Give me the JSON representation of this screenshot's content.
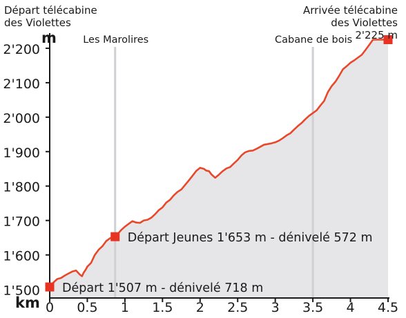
{
  "chart_data": {
    "type": "area",
    "title": "",
    "xlabel": "km",
    "ylabel": "m",
    "xlim": [
      0,
      4.5
    ],
    "ylim": [
      1475,
      2240
    ],
    "x_ticks": [
      0,
      0.5,
      1,
      1.5,
      2,
      2.5,
      3,
      3.5,
      4,
      4.5
    ],
    "x_tick_labels": [
      "0",
      "0.5",
      "1",
      "1.5",
      "2",
      "2.5",
      "3",
      "3.5",
      "4",
      "4.5"
    ],
    "y_ticks": [
      1500,
      1600,
      1700,
      1800,
      1900,
      2000,
      2100,
      2200
    ],
    "y_tick_labels": [
      "1'500",
      "1'600",
      "1'700",
      "1'800",
      "1'900",
      "2'000",
      "2'100",
      "2'200"
    ],
    "grid": false,
    "colors": {
      "line": "#e8472a",
      "fill": "#e6e6e8",
      "marker": "#e63323",
      "axis": "#1a1a1a",
      "guide": "#cfd0d4"
    },
    "series": [
      {
        "x": [
          0,
          0.02,
          0.05,
          0.1,
          0.15,
          0.2,
          0.25,
          0.3,
          0.35,
          0.4,
          0.43,
          0.45,
          0.48,
          0.5,
          0.55,
          0.6,
          0.65,
          0.7,
          0.75,
          0.8,
          0.85,
          0.9,
          0.95,
          1.0,
          1.05,
          1.1,
          1.15,
          1.2,
          1.25,
          1.3,
          1.35,
          1.4,
          1.45,
          1.5,
          1.55,
          1.6,
          1.65,
          1.7,
          1.75,
          1.8,
          1.85,
          1.9,
          1.95,
          2.0,
          2.05,
          2.08,
          2.12,
          2.15,
          2.2,
          2.25,
          2.3,
          2.35,
          2.4,
          2.45,
          2.5,
          2.55,
          2.6,
          2.65,
          2.7,
          2.75,
          2.8,
          2.85,
          2.9,
          2.95,
          3.0,
          3.05,
          3.1,
          3.15,
          3.2,
          3.25,
          3.3,
          3.35,
          3.4,
          3.45,
          3.5,
          3.55,
          3.6,
          3.65,
          3.7,
          3.75,
          3.8,
          3.85,
          3.9,
          3.95,
          4.0,
          4.05,
          4.1,
          4.15,
          4.2,
          4.25,
          4.3,
          4.35,
          4.4,
          4.43,
          4.46,
          4.48,
          4.5
        ],
        "y": [
          1507,
          1512,
          1520,
          1530,
          1533,
          1540,
          1546,
          1552,
          1555,
          1543,
          1538,
          1548,
          1558,
          1566,
          1577,
          1600,
          1615,
          1625,
          1640,
          1648,
          1653,
          1660,
          1672,
          1682,
          1690,
          1698,
          1694,
          1693,
          1700,
          1702,
          1708,
          1718,
          1730,
          1738,
          1752,
          1760,
          1773,
          1783,
          1790,
          1803,
          1816,
          1830,
          1844,
          1853,
          1850,
          1845,
          1843,
          1834,
          1824,
          1833,
          1843,
          1851,
          1855,
          1866,
          1876,
          1889,
          1898,
          1902,
          1903,
          1908,
          1914,
          1920,
          1922,
          1924,
          1927,
          1932,
          1939,
          1947,
          1953,
          1964,
          1974,
          1983,
          1994,
          2004,
          2012,
          2020,
          2034,
          2047,
          2073,
          2090,
          2103,
          2120,
          2139,
          2148,
          2158,
          2165,
          2173,
          2181,
          2195,
          2210,
          2225,
          2225,
          2225,
          2225,
          2225,
          2225,
          2225
        ]
      }
    ],
    "guides": [
      {
        "x": 0.87,
        "label": "Les Marolires"
      },
      {
        "x": 3.5,
        "label": "Cabane de bois"
      }
    ],
    "markers": [
      {
        "x": 0,
        "y": 1507,
        "label": "Départ 1'507 m - dénivelé 718 m"
      },
      {
        "x": 0.87,
        "y": 1653,
        "label": "Départ Jeunes 1'653 m - dénivelé 572 m"
      },
      {
        "x": 4.5,
        "y": 2225
      }
    ],
    "annotations": {
      "start": [
        "Départ télécabine",
        "des Violettes"
      ],
      "end": [
        "Arrivée télécabine",
        "des Violettes",
        "2'225 m"
      ]
    }
  }
}
